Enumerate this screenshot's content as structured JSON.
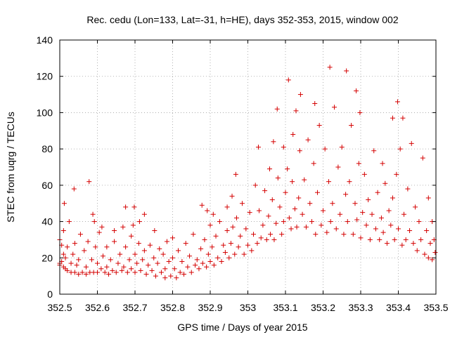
{
  "chart_data": {
    "type": "scatter",
    "title": "Rec. cedu (Lon=133, Lat=-31, h=HE), days 352-353, 2015, window 002",
    "xlabel": "GPS time / Days of year 2015",
    "ylabel": "STEC from uqrg / TECUs",
    "xlim": [
      352.5,
      353.5
    ],
    "ylim": [
      0,
      140
    ],
    "xticks": [
      352.5,
      352.6,
      352.7,
      352.8,
      352.9,
      353,
      353.1,
      353.2,
      353.3,
      353.4,
      353.5
    ],
    "xtick_labels": [
      "352.5",
      "352.6",
      "352.7",
      "352.8",
      "352.9",
      "353",
      "353.1",
      "353.2",
      "353.3",
      "353.4",
      "353.5"
    ],
    "yticks": [
      0,
      20,
      40,
      60,
      80,
      100,
      120,
      140
    ],
    "ytick_labels": [
      "0",
      "20",
      "40",
      "60",
      "80",
      "100",
      "120",
      "140"
    ],
    "grid": true,
    "marker": "+",
    "color": "#d40000",
    "series": [
      {
        "name": "STEC",
        "points": [
          [
            352.5,
            17
          ],
          [
            352.5,
            16
          ],
          [
            352.5,
            30
          ],
          [
            352.505,
            27
          ],
          [
            352.505,
            18
          ],
          [
            352.51,
            15
          ],
          [
            352.51,
            22
          ],
          [
            352.51,
            35
          ],
          [
            352.512,
            50
          ],
          [
            352.515,
            14
          ],
          [
            352.515,
            20
          ],
          [
            352.52,
            13
          ],
          [
            352.52,
            26
          ],
          [
            352.525,
            40
          ],
          [
            352.53,
            12
          ],
          [
            352.53,
            17
          ],
          [
            352.535,
            22
          ],
          [
            352.538,
            58
          ],
          [
            352.54,
            12
          ],
          [
            352.54,
            28
          ],
          [
            352.545,
            16
          ],
          [
            352.55,
            11
          ],
          [
            352.55,
            19
          ],
          [
            352.555,
            33
          ],
          [
            352.56,
            12
          ],
          [
            352.565,
            24
          ],
          [
            352.57,
            11
          ],
          [
            352.57,
            15
          ],
          [
            352.575,
            29
          ],
          [
            352.578,
            62
          ],
          [
            352.58,
            12
          ],
          [
            352.585,
            19
          ],
          [
            352.588,
            44
          ],
          [
            352.59,
            12
          ],
          [
            352.592,
            40
          ],
          [
            352.595,
            26
          ],
          [
            352.6,
            12
          ],
          [
            352.6,
            17
          ],
          [
            352.605,
            34
          ],
          [
            352.61,
            14
          ],
          [
            352.612,
            37
          ],
          [
            352.615,
            21
          ],
          [
            352.62,
            12
          ],
          [
            352.625,
            15
          ],
          [
            352.625,
            26
          ],
          [
            352.63,
            11
          ],
          [
            352.635,
            19
          ],
          [
            352.64,
            13
          ],
          [
            352.645,
            29
          ],
          [
            352.645,
            35
          ],
          [
            352.65,
            12
          ],
          [
            352.655,
            17
          ],
          [
            352.66,
            22
          ],
          [
            352.665,
            13
          ],
          [
            352.668,
            37
          ],
          [
            352.67,
            15
          ],
          [
            352.675,
            48
          ],
          [
            352.675,
            26
          ],
          [
            352.68,
            12
          ],
          [
            352.685,
            19
          ],
          [
            352.69,
            32
          ],
          [
            352.69,
            14
          ],
          [
            352.695,
            38
          ],
          [
            352.698,
            48
          ],
          [
            352.7,
            12
          ],
          [
            352.7,
            22
          ],
          [
            352.705,
            17
          ],
          [
            352.71,
            28
          ],
          [
            352.712,
            40
          ],
          [
            352.715,
            13
          ],
          [
            352.72,
            19
          ],
          [
            352.725,
            44
          ],
          [
            352.725,
            24
          ],
          [
            352.73,
            11
          ],
          [
            352.735,
            16
          ],
          [
            352.74,
            27
          ],
          [
            352.745,
            13
          ],
          [
            352.75,
            20
          ],
          [
            352.752,
            35
          ],
          [
            352.755,
            10
          ],
          [
            352.76,
            17
          ],
          [
            352.765,
            25
          ],
          [
            352.77,
            12
          ],
          [
            352.775,
            22
          ],
          [
            352.78,
            9
          ],
          [
            352.78,
            14
          ],
          [
            352.785,
            29
          ],
          [
            352.79,
            18
          ],
          [
            352.795,
            10
          ],
          [
            352.8,
            20
          ],
          [
            352.8,
            31
          ],
          [
            352.805,
            14
          ],
          [
            352.81,
            9
          ],
          [
            352.815,
            24
          ],
          [
            352.82,
            12
          ],
          [
            352.825,
            18
          ],
          [
            352.83,
            11
          ],
          [
            352.835,
            28
          ],
          [
            352.84,
            15
          ],
          [
            352.845,
            21
          ],
          [
            352.85,
            12
          ],
          [
            352.855,
            33
          ],
          [
            352.86,
            16
          ],
          [
            352.865,
            19
          ],
          [
            352.87,
            14
          ],
          [
            352.875,
            25
          ],
          [
            352.878,
            49
          ],
          [
            352.88,
            17
          ],
          [
            352.885,
            30
          ],
          [
            352.89,
            15
          ],
          [
            352.892,
            46
          ],
          [
            352.895,
            22
          ],
          [
            352.9,
            18
          ],
          [
            352.9,
            38
          ],
          [
            352.905,
            26
          ],
          [
            352.908,
            44
          ],
          [
            352.91,
            16
          ],
          [
            352.915,
            32
          ],
          [
            352.92,
            20
          ],
          [
            352.925,
            40
          ],
          [
            352.93,
            18
          ],
          [
            352.935,
            27
          ],
          [
            352.94,
            23
          ],
          [
            352.945,
            48
          ],
          [
            352.945,
            35
          ],
          [
            352.95,
            20
          ],
          [
            352.955,
            28
          ],
          [
            352.958,
            54
          ],
          [
            352.96,
            37
          ],
          [
            352.965,
            22
          ],
          [
            352.968,
            66
          ],
          [
            352.97,
            42
          ],
          [
            352.975,
            26
          ],
          [
            352.98,
            32
          ],
          [
            352.985,
            50
          ],
          [
            352.99,
            22
          ],
          [
            352.995,
            36
          ],
          [
            353.0,
            27
          ],
          [
            353.005,
            45
          ],
          [
            353.01,
            24
          ],
          [
            353.015,
            33
          ],
          [
            353.02,
            60
          ],
          [
            353.025,
            28
          ],
          [
            353.028,
            81
          ],
          [
            353.03,
            46
          ],
          [
            353.035,
            31
          ],
          [
            353.04,
            38
          ],
          [
            353.045,
            57
          ],
          [
            353.05,
            30
          ],
          [
            353.055,
            43
          ],
          [
            353.058,
            69
          ],
          [
            353.06,
            33
          ],
          [
            353.065,
            52
          ],
          [
            353.068,
            84
          ],
          [
            353.07,
            30
          ],
          [
            353.075,
            39
          ],
          [
            353.078,
            102
          ],
          [
            353.08,
            64
          ],
          [
            353.085,
            48
          ],
          [
            353.09,
            33
          ],
          [
            353.095,
            81
          ],
          [
            353.095,
            40
          ],
          [
            353.1,
            56
          ],
          [
            353.105,
            69
          ],
          [
            353.108,
            118
          ],
          [
            353.11,
            42
          ],
          [
            353.115,
            36
          ],
          [
            353.118,
            62
          ],
          [
            353.12,
            88
          ],
          [
            353.125,
            47
          ],
          [
            353.128,
            101
          ],
          [
            353.13,
            37
          ],
          [
            353.135,
            53
          ],
          [
            353.138,
            79
          ],
          [
            353.14,
            110
          ],
          [
            353.145,
            44
          ],
          [
            353.15,
            63
          ],
          [
            353.155,
            37
          ],
          [
            353.16,
            85
          ],
          [
            353.165,
            50
          ],
          [
            353.17,
            40
          ],
          [
            353.175,
            72
          ],
          [
            353.178,
            105
          ],
          [
            353.18,
            33
          ],
          [
            353.185,
            56
          ],
          [
            353.19,
            93
          ],
          [
            353.195,
            38
          ],
          [
            353.2,
            46
          ],
          [
            353.205,
            80
          ],
          [
            353.21,
            34
          ],
          [
            353.215,
            62
          ],
          [
            353.218,
            125
          ],
          [
            353.22,
            40
          ],
          [
            353.225,
            50
          ],
          [
            353.23,
            103
          ],
          [
            353.235,
            36
          ],
          [
            353.24,
            70
          ],
          [
            353.245,
            44
          ],
          [
            353.25,
            81
          ],
          [
            353.255,
            33
          ],
          [
            353.26,
            55
          ],
          [
            353.262,
            123
          ],
          [
            353.265,
            40
          ],
          [
            353.27,
            62
          ],
          [
            353.275,
            93
          ],
          [
            353.28,
            33
          ],
          [
            353.285,
            50
          ],
          [
            353.288,
            112
          ],
          [
            353.29,
            41
          ],
          [
            353.295,
            72
          ],
          [
            353.298,
            100
          ],
          [
            353.3,
            31
          ],
          [
            353.305,
            45
          ],
          [
            353.31,
            66
          ],
          [
            353.315,
            38
          ],
          [
            353.32,
            52
          ],
          [
            353.325,
            30
          ],
          [
            353.33,
            44
          ],
          [
            353.335,
            79
          ],
          [
            353.34,
            36
          ],
          [
            353.345,
            56
          ],
          [
            353.35,
            30
          ],
          [
            353.355,
            42
          ],
          [
            353.358,
            72
          ],
          [
            353.36,
            34
          ],
          [
            353.365,
            61
          ],
          [
            353.37,
            28
          ],
          [
            353.375,
            46
          ],
          [
            353.38,
            38
          ],
          [
            353.385,
            97
          ],
          [
            353.385,
            53
          ],
          [
            353.39,
            30
          ],
          [
            353.395,
            66
          ],
          [
            353.398,
            106
          ],
          [
            353.4,
            36
          ],
          [
            353.405,
            80
          ],
          [
            353.41,
            27
          ],
          [
            353.412,
            97
          ],
          [
            353.415,
            44
          ],
          [
            353.42,
            30
          ],
          [
            353.425,
            58
          ],
          [
            353.43,
            35
          ],
          [
            353.435,
            83
          ],
          [
            353.44,
            28
          ],
          [
            353.445,
            48
          ],
          [
            353.45,
            24
          ],
          [
            353.455,
            40
          ],
          [
            353.46,
            30
          ],
          [
            353.465,
            75
          ],
          [
            353.47,
            22
          ],
          [
            353.475,
            35
          ],
          [
            353.48,
            20
          ],
          [
            353.48,
            53
          ],
          [
            353.485,
            28
          ],
          [
            353.49,
            19
          ],
          [
            353.49,
            40
          ],
          [
            353.495,
            30
          ],
          [
            353.498,
            23
          ]
        ]
      }
    ]
  }
}
